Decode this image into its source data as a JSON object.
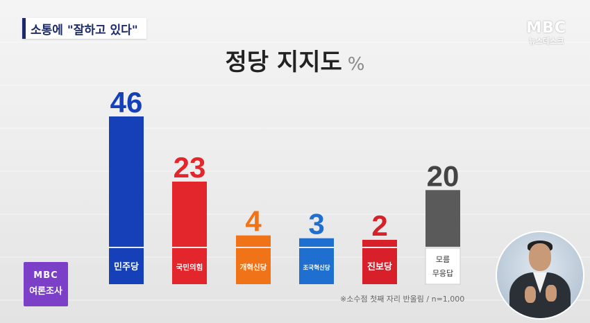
{
  "topic_banner": "소통에 \"잘하고 있다\"",
  "broadcaster": {
    "logo": "MBC",
    "program": "뉴스데스크"
  },
  "title": "정당 지지도",
  "unit": "%",
  "badge": {
    "line1": "MBC",
    "line2": "여론조사"
  },
  "footnote": "※소수점 첫째 자리 반올림 / n=1,000",
  "colors": {
    "democratic": "#1540b8",
    "ppp": "#e3262c",
    "reform": "#f07318",
    "rebuilding": "#1f6fd1",
    "progressive": "#d8202a",
    "undecided": "#5a5a5a"
  },
  "chart_data": {
    "type": "bar",
    "title": "정당 지지도",
    "unit": "%",
    "categories": [
      "민주당",
      "국민의힘",
      "개혁신당",
      "조국혁신당",
      "진보당",
      "모름·무응답"
    ],
    "values": [
      46,
      23,
      4,
      3,
      2,
      20
    ],
    "value_labels": [
      "46",
      "23",
      "4",
      "3",
      "2",
      "20"
    ],
    "bar_colors": [
      "#1540b8",
      "#e3262c",
      "#f07318",
      "#1f6fd1",
      "#d8202a",
      "#5a5a5a"
    ],
    "label_colors": [
      "#1540b8",
      "#e3262c",
      "#f07318",
      "#1f6fd1",
      "#d8202a",
      "#444444"
    ],
    "ylim": [
      0,
      46
    ],
    "grid": false,
    "legend": "none"
  }
}
